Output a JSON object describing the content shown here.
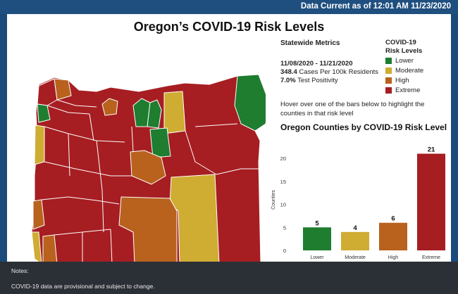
{
  "header": {
    "data_current": "Data Current as of 12:01 AM 11/23/2020"
  },
  "title": "Oregon’s COVID-19 Risk Levels",
  "metrics": {
    "heading": "Statewide Metrics",
    "date_range": "11/08/2020 - 11/21/2020",
    "cases_value": "348.4",
    "cases_label": " Cases Per 100k Residents",
    "positivity_value": "7.0%",
    "positivity_label": " Test Positivity"
  },
  "legend": {
    "heading": "COVID-19 Risk Levels",
    "items": [
      {
        "label": "Lower",
        "color": "#1e7d2e"
      },
      {
        "label": "Moderate",
        "color": "#cfac32"
      },
      {
        "label": "High",
        "color": "#b8621e"
      },
      {
        "label": "Extreme",
        "color": "#a61e22"
      }
    ]
  },
  "hint": "Hover over one of the bars below to highlight the counties in that risk level",
  "chart_title": "Oregon Counties by COVID-19 Risk Level",
  "chart_data": {
    "type": "bar",
    "categories": [
      "Lower",
      "Moderate",
      "High",
      "Extreme"
    ],
    "values": [
      5,
      4,
      6,
      21
    ],
    "colors": [
      "#1e7d2e",
      "#cfac32",
      "#b8621e",
      "#a61e22"
    ],
    "ylabel": "Counties",
    "yticks": [
      0,
      5,
      10,
      15,
      20
    ],
    "ylim": [
      0,
      22
    ],
    "grid": false
  },
  "notes": {
    "label": "Notes:",
    "text": "COVID-19 data are provisional and subject to change."
  }
}
